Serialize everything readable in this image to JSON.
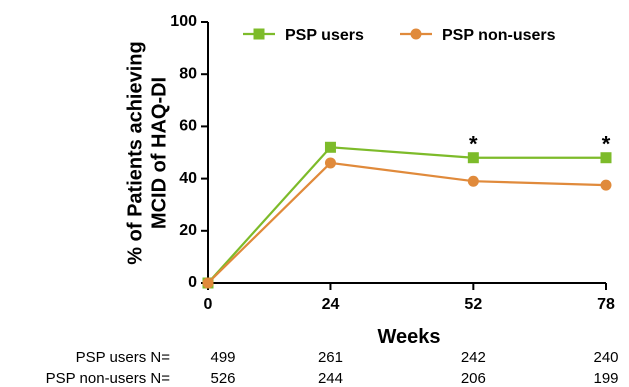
{
  "chart_data": {
    "type": "line",
    "xlabel": "Weeks",
    "ylabel_lines": [
      "% of Patients achieving",
      "MCID of HAQ-DI"
    ],
    "x": [
      0,
      24,
      52,
      78
    ],
    "x_tick_labels": [
      "0",
      "24",
      "52",
      "78"
    ],
    "ylim": [
      0,
      100
    ],
    "y_ticks": [
      0,
      20,
      40,
      60,
      80,
      100
    ],
    "grid": false,
    "legend": "top",
    "series": [
      {
        "name": "PSP users",
        "marker": "square",
        "color": "#7dbb2a",
        "values": [
          0,
          52,
          48,
          48
        ]
      },
      {
        "name": "PSP non-users",
        "marker": "circle",
        "color": "#e08a3b",
        "values": [
          0,
          46,
          39,
          37.5
        ]
      }
    ],
    "annotations": [
      {
        "x": 52,
        "text": "*"
      },
      {
        "x": 78,
        "text": "*"
      }
    ],
    "n_table": [
      {
        "label": "PSP users N=",
        "values": [
          "499",
          "261",
          "242",
          "240"
        ]
      },
      {
        "label": "PSP non-users N=",
        "values": [
          "526",
          "244",
          "206",
          "199"
        ]
      }
    ]
  }
}
